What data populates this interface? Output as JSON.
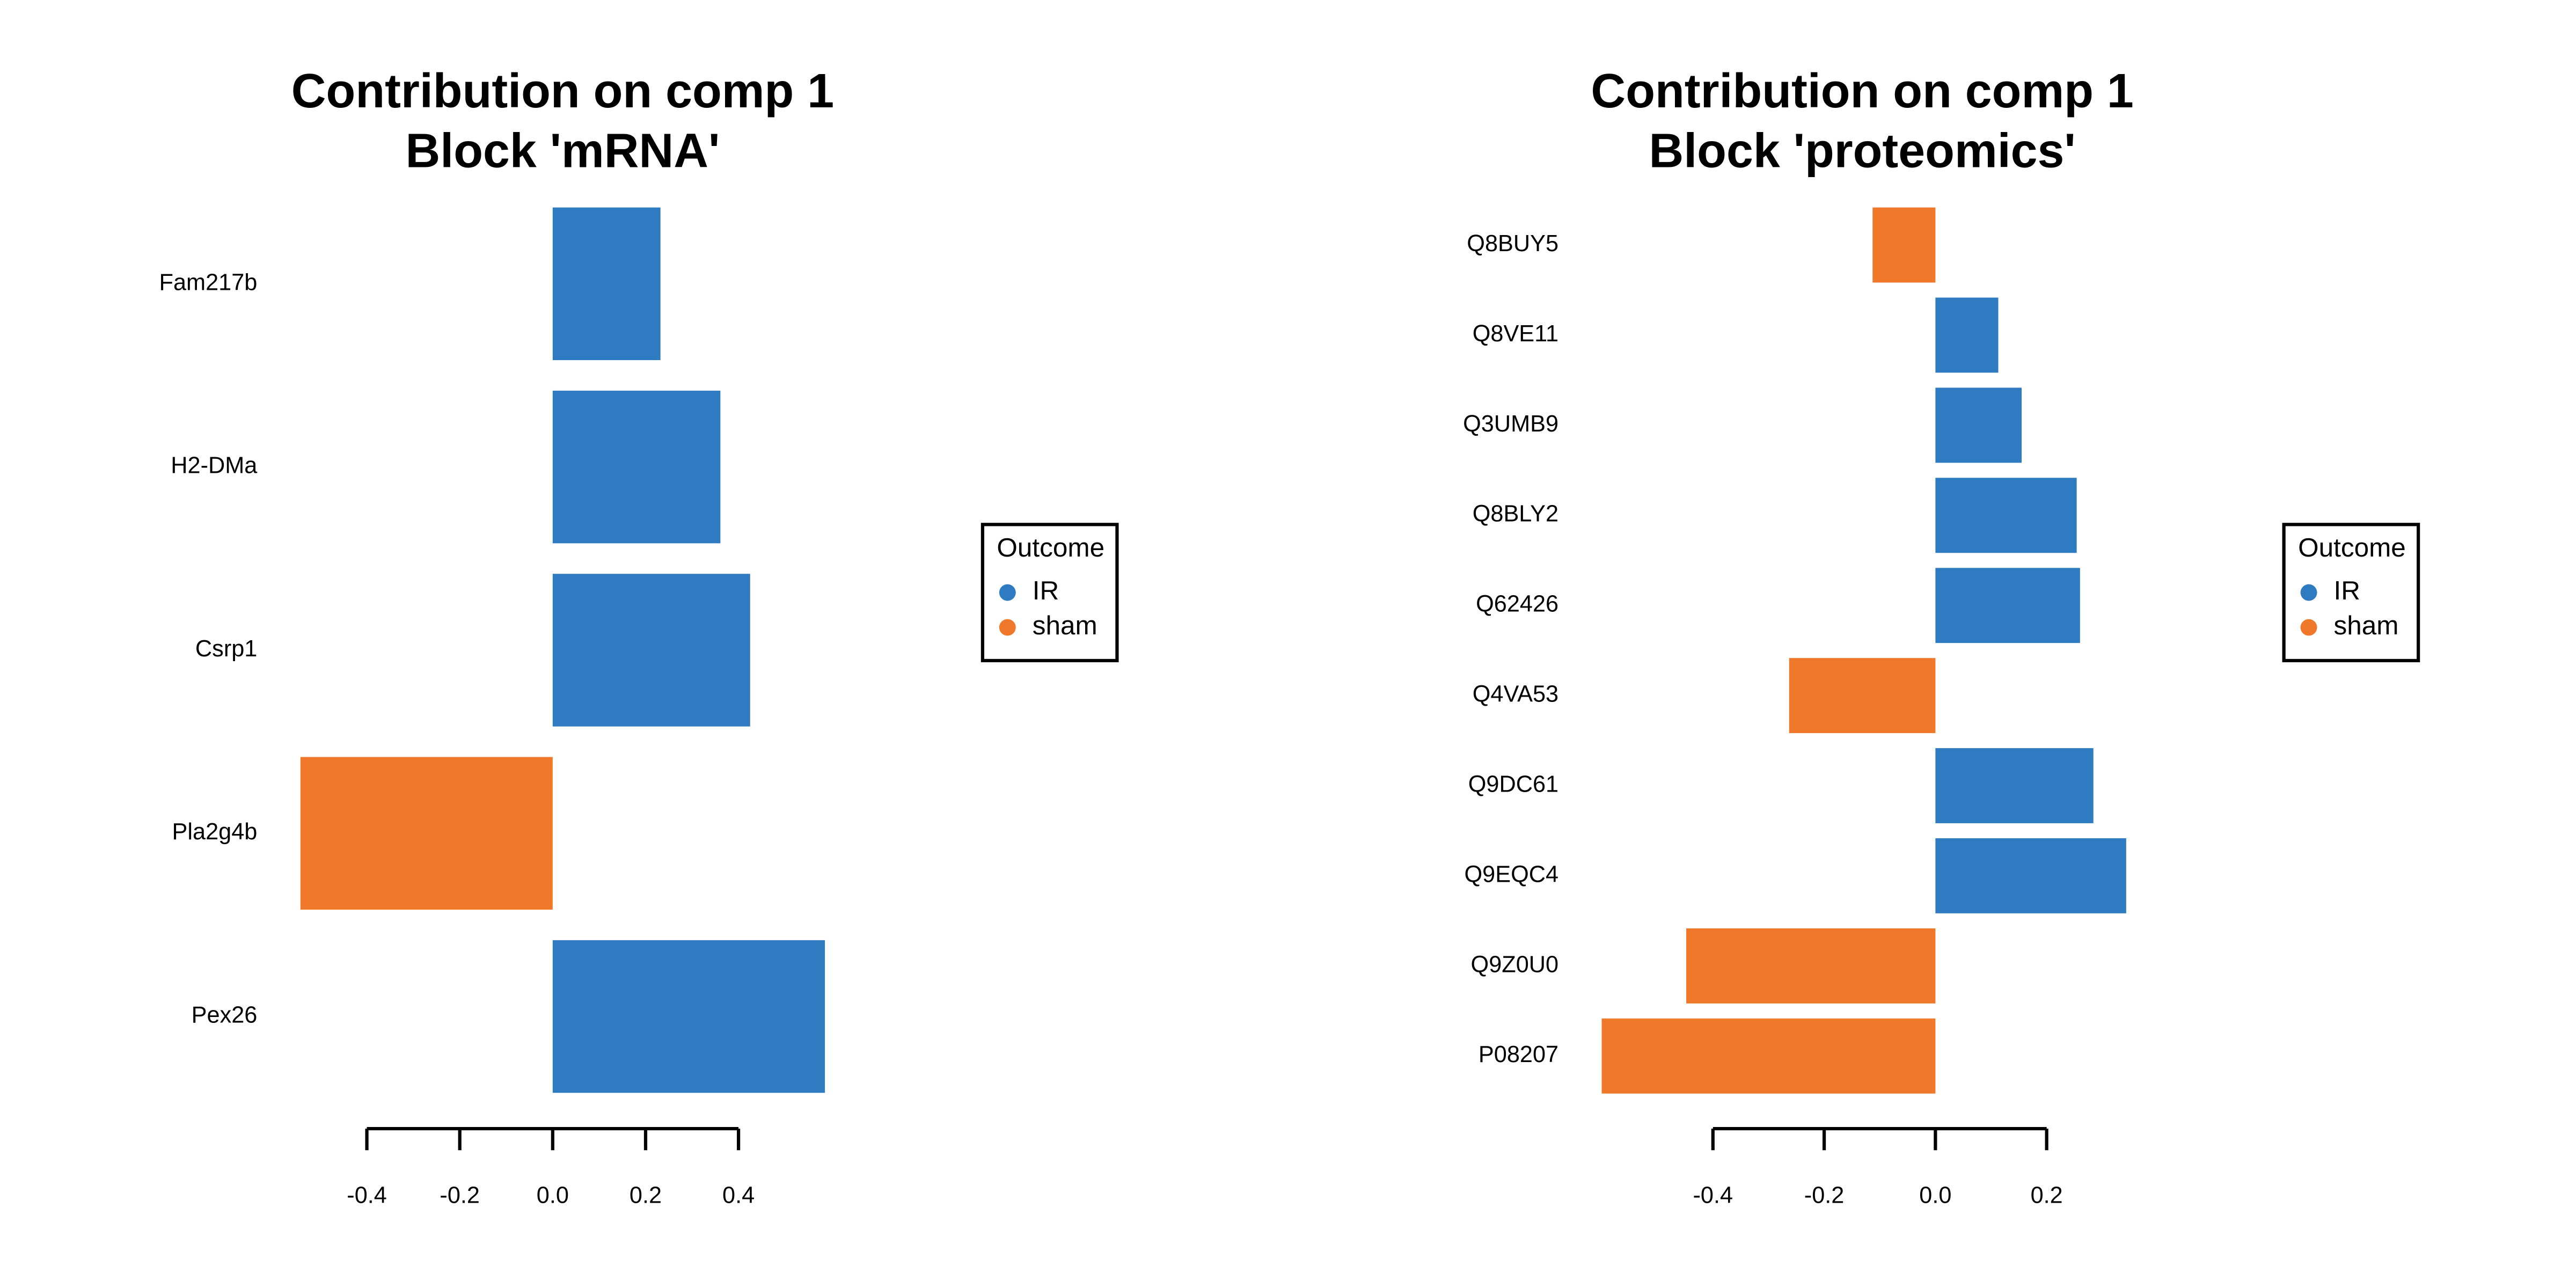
{
  "chart_data": [
    {
      "type": "barh",
      "title": [
        "Contribution on comp 1",
        "Block 'mRNA'"
      ],
      "categories": [
        "Fam217b",
        "H2-DMa",
        "Csrp1",
        "Pla2g4b",
        "Pex26"
      ],
      "values": [
        0.232,
        0.361,
        0.425,
        -0.543,
        0.586
      ],
      "colors": [
        "#2E7BC1",
        "#2E7BC1",
        "#2E7BC1",
        "#F0782A",
        "#2E7BC1"
      ],
      "xlim": [
        -0.543,
        0.586
      ],
      "xticks": [
        -0.4,
        -0.2,
        {
          "value": 0,
          "label": "0.0"
        },
        0.2,
        0.4
      ],
      "legend": {
        "title": "Outcome",
        "items": [
          {
            "name": "IR",
            "color": "#2E7BC1"
          },
          {
            "name": "sham",
            "color": "#F0782A"
          }
        ]
      }
    },
    {
      "type": "barh",
      "title": [
        "Contribution on comp 1",
        "Block 'proteomics'"
      ],
      "categories": [
        "Q8BUY5",
        "Q8VE11",
        "Q3UMB9",
        "Q8BLY2",
        "Q62426",
        "Q4VA53",
        "Q9DC61",
        "Q9EQC4",
        "Q9Z0U0",
        "P08207"
      ],
      "values": [
        -0.113,
        0.113,
        0.155,
        0.254,
        0.26,
        -0.263,
        0.284,
        0.343,
        -0.448,
        -0.6
      ],
      "colors": [
        "#F0782A",
        "#2E7BC1",
        "#2E7BC1",
        "#2E7BC1",
        "#2E7BC1",
        "#F0782A",
        "#2E7BC1",
        "#2E7BC1",
        "#F0782A",
        "#F0782A"
      ],
      "xlim": [
        -0.6,
        0.343
      ],
      "xticks": [
        -0.4,
        -0.2,
        {
          "value": 0,
          "label": "0.0"
        },
        0.2
      ],
      "legend": {
        "title": "Outcome",
        "items": [
          {
            "name": "IR",
            "color": "#2E7BC1"
          },
          {
            "name": "sham",
            "color": "#F0782A"
          }
        ]
      }
    }
  ]
}
